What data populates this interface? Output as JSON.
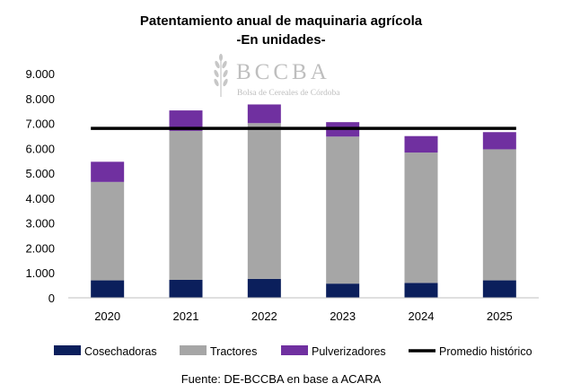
{
  "chart_data": {
    "type": "bar",
    "stacked": true,
    "title": "Patentamiento anual de maquinaria agrícola",
    "subtitle": "-En unidades-",
    "categories": [
      "2020",
      "2021",
      "2022",
      "2023",
      "2024",
      "2025"
    ],
    "series": [
      {
        "name": "Cosechadoras",
        "color": "#0b1f5c",
        "values": [
          700,
          720,
          760,
          570,
          600,
          700
        ]
      },
      {
        "name": "Tractores",
        "color": "#a6a6a6",
        "values": [
          3950,
          5980,
          6250,
          5900,
          5230,
          5260
        ]
      },
      {
        "name": "Pulverizadores",
        "color": "#7030a0",
        "values": [
          810,
          820,
          750,
          580,
          660,
          690
        ]
      }
    ],
    "reference_line": {
      "name": "Promedio histórico",
      "color": "#000000",
      "value": 6800
    },
    "ylim": [
      0,
      9000
    ],
    "yticks": [
      0,
      1000,
      2000,
      3000,
      4000,
      5000,
      6000,
      7000,
      8000,
      9000
    ],
    "ytick_labels": [
      "0",
      "1.000",
      "2.000",
      "3.000",
      "4.000",
      "5.000",
      "6.000",
      "7.000",
      "8.000",
      "9.000"
    ],
    "xlabel": "",
    "ylabel": "",
    "legend_position": "bottom",
    "source": "Fuente: DE-BCCBA en base a ACARA"
  },
  "watermark": {
    "name": "BCCBA",
    "tagline": "Bolsa de Cereales de Córdoba"
  }
}
